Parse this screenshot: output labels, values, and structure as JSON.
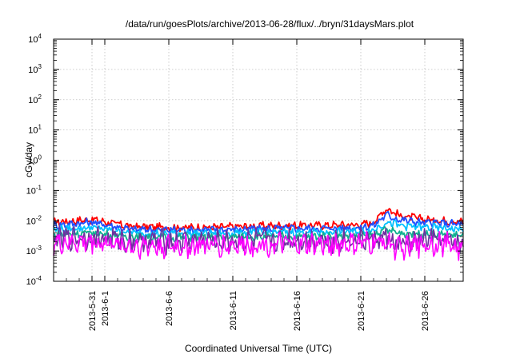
{
  "chart_data": {
    "type": "line",
    "title": "/data/run/goesPlots/archive/2013-06-28/flux/../bryn/31daysMars.plot",
    "xlabel": "Coordinated Universal Time (UTC)",
    "ylabel": "cGy/day",
    "yscale": "log",
    "ylim": [
      0.0001,
      10000
    ],
    "y_ticks": [
      {
        "base": "10",
        "exp": "-4"
      },
      {
        "base": "10",
        "exp": "-3"
      },
      {
        "base": "10",
        "exp": "-2"
      },
      {
        "base": "10",
        "exp": "-1"
      },
      {
        "base": "10",
        "exp": "0"
      },
      {
        "base": "10",
        "exp": "1"
      },
      {
        "base": "10",
        "exp": "2"
      },
      {
        "base": "10",
        "exp": "3"
      },
      {
        "base": "10",
        "exp": "4"
      }
    ],
    "xlim": [
      "2013-05-28",
      "2013-06-29"
    ],
    "x_ticks": [
      "2013-5-31",
      "2013-6-1",
      "2013-6-6",
      "2013-6-11",
      "2013-6-16",
      "2013-6-21",
      "2013-6-26"
    ],
    "grid": true,
    "legend": "none",
    "series_colors": [
      "#ff0000",
      "#1f4fff",
      "#00c0ff",
      "#10b090",
      "#ff00ff",
      "#7030a0"
    ],
    "series": [
      {
        "color": "#ff0000",
        "x": [
          "2013-05-28",
          "2013-05-31",
          "2013-06-03",
          "2013-06-06",
          "2013-06-09",
          "2013-06-12",
          "2013-06-15",
          "2013-06-18",
          "2013-06-21",
          "2013-06-22",
          "2013-06-23",
          "2013-06-24",
          "2013-06-26",
          "2013-06-28",
          "2013-06-29"
        ],
        "y": [
          0.009,
          0.011,
          0.0065,
          0.006,
          0.006,
          0.0065,
          0.007,
          0.007,
          0.0075,
          0.009,
          0.026,
          0.015,
          0.011,
          0.01,
          0.009
        ]
      },
      {
        "color": "#1f4fff",
        "x": [
          "2013-05-28",
          "2013-05-31",
          "2013-06-03",
          "2013-06-06",
          "2013-06-09",
          "2013-06-12",
          "2013-06-15",
          "2013-06-18",
          "2013-06-21",
          "2013-06-22",
          "2013-06-23",
          "2013-06-24",
          "2013-06-26",
          "2013-06-28",
          "2013-06-29"
        ],
        "y": [
          0.007,
          0.009,
          0.0052,
          0.005,
          0.005,
          0.0053,
          0.0056,
          0.0056,
          0.006,
          0.007,
          0.016,
          0.011,
          0.0085,
          0.008,
          0.0075
        ]
      },
      {
        "color": "#00c0ff",
        "x": [
          "2013-05-28",
          "2013-05-31",
          "2013-06-03",
          "2013-06-06",
          "2013-06-09",
          "2013-06-12",
          "2013-06-15",
          "2013-06-18",
          "2013-06-21",
          "2013-06-22",
          "2013-06-23",
          "2013-06-24",
          "2013-06-26",
          "2013-06-28",
          "2013-06-29"
        ],
        "y": [
          0.005,
          0.006,
          0.004,
          0.0038,
          0.0038,
          0.004,
          0.0042,
          0.0042,
          0.0045,
          0.005,
          0.009,
          0.007,
          0.006,
          0.0055,
          0.0052
        ]
      },
      {
        "color": "#10b090",
        "x": [
          "2013-05-28",
          "2013-05-31",
          "2013-06-03",
          "2013-06-06",
          "2013-06-09",
          "2013-06-12",
          "2013-06-15",
          "2013-06-18",
          "2013-06-21",
          "2013-06-22",
          "2013-06-23",
          "2013-06-24",
          "2013-06-26",
          "2013-06-28",
          "2013-06-29"
        ],
        "y": [
          0.0035,
          0.004,
          0.003,
          0.0028,
          0.0028,
          0.003,
          0.003,
          0.0031,
          0.0032,
          0.0035,
          0.005,
          0.004,
          0.0036,
          0.0034,
          0.0033
        ]
      },
      {
        "color": "#7030a0",
        "x": [
          "2013-05-28",
          "2013-05-31",
          "2013-06-03",
          "2013-06-06",
          "2013-06-09",
          "2013-06-12",
          "2013-06-15",
          "2013-06-18",
          "2013-06-21",
          "2013-06-22",
          "2013-06-23",
          "2013-06-24",
          "2013-06-26",
          "2013-06-28",
          "2013-06-29"
        ],
        "y": [
          0.0025,
          0.0028,
          0.0022,
          0.002,
          0.0021,
          0.0022,
          0.0022,
          0.0023,
          0.0023,
          0.0024,
          0.0028,
          0.0015,
          0.0024,
          0.0022,
          0.0016
        ]
      },
      {
        "color": "#ff00ff",
        "x": [
          "2013-05-28",
          "2013-05-31",
          "2013-06-03",
          "2013-06-06",
          "2013-06-09",
          "2013-06-12",
          "2013-06-15",
          "2013-06-18",
          "2013-06-21",
          "2013-06-22",
          "2013-06-23",
          "2013-06-24",
          "2013-06-26",
          "2013-06-28",
          "2013-06-29"
        ],
        "y": [
          0.0018,
          0.002,
          0.0015,
          0.0014,
          0.0015,
          0.0016,
          0.0016,
          0.0016,
          0.0017,
          0.0018,
          0.0022,
          0.0011,
          0.0018,
          0.0016,
          0.0011
        ]
      }
    ]
  }
}
